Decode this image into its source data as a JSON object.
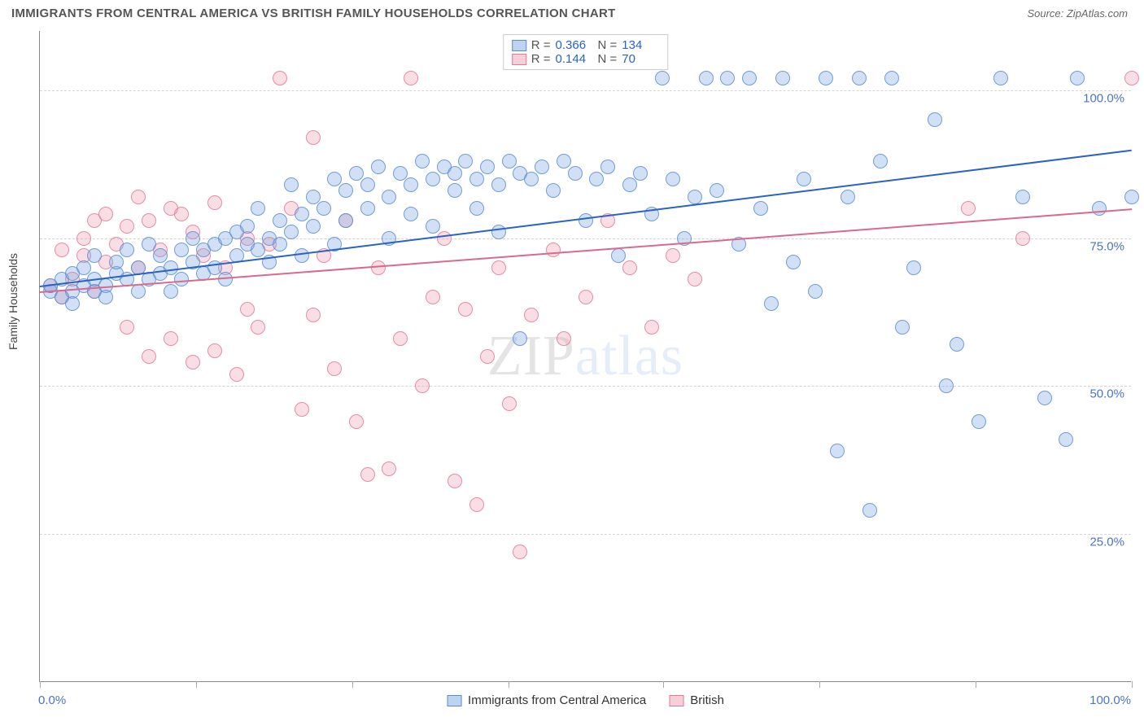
{
  "header": {
    "title": "IMMIGRANTS FROM CENTRAL AMERICA VS BRITISH FAMILY HOUSEHOLDS CORRELATION CHART",
    "source": "Source: ZipAtlas.com"
  },
  "watermark": {
    "part1": "ZIP",
    "part2": "atlas"
  },
  "chart": {
    "type": "scatter",
    "ylabel": "Family Households",
    "xlim": [
      0,
      100
    ],
    "ylim": [
      0,
      110
    ],
    "background_color": "#ffffff",
    "grid_color": "#d5d5d5",
    "axis_color": "#888888",
    "ytick_labels": [
      "25.0%",
      "50.0%",
      "75.0%",
      "100.0%"
    ],
    "ytick_values": [
      25,
      50,
      75,
      100
    ],
    "xtick_values": [
      0,
      14.3,
      28.6,
      42.9,
      57.1,
      71.4,
      85.7,
      100
    ],
    "xaxis_min_label": "0.0%",
    "xaxis_max_label": "100.0%",
    "point_radius": 9,
    "series_a": {
      "name": "Immigrants from Central America",
      "color_fill": "rgba(124,167,225,0.35)",
      "color_stroke": "#5a8cd2",
      "R": "0.366",
      "N": "134",
      "trend": {
        "x1": 0,
        "y1": 67,
        "x2": 100,
        "y2": 90,
        "color": "#2a63c4",
        "width": 2
      },
      "points": [
        [
          1,
          66
        ],
        [
          1,
          67
        ],
        [
          2,
          65
        ],
        [
          2,
          68
        ],
        [
          3,
          66
        ],
        [
          3,
          69
        ],
        [
          3,
          64
        ],
        [
          4,
          67
        ],
        [
          4,
          70
        ],
        [
          5,
          66
        ],
        [
          5,
          68
        ],
        [
          5,
          72
        ],
        [
          6,
          67
        ],
        [
          6,
          65
        ],
        [
          7,
          69
        ],
        [
          7,
          71
        ],
        [
          8,
          68
        ],
        [
          8,
          73
        ],
        [
          9,
          66
        ],
        [
          9,
          70
        ],
        [
          10,
          68
        ],
        [
          10,
          74
        ],
        [
          11,
          69
        ],
        [
          11,
          72
        ],
        [
          12,
          70
        ],
        [
          12,
          66
        ],
        [
          13,
          73
        ],
        [
          13,
          68
        ],
        [
          14,
          71
        ],
        [
          14,
          75
        ],
        [
          15,
          69
        ],
        [
          15,
          73
        ],
        [
          16,
          74
        ],
        [
          16,
          70
        ],
        [
          17,
          75
        ],
        [
          17,
          68
        ],
        [
          18,
          76
        ],
        [
          18,
          72
        ],
        [
          19,
          74
        ],
        [
          19,
          77
        ],
        [
          20,
          73
        ],
        [
          20,
          80
        ],
        [
          21,
          75
        ],
        [
          21,
          71
        ],
        [
          22,
          78
        ],
        [
          22,
          74
        ],
        [
          23,
          84
        ],
        [
          23,
          76
        ],
        [
          24,
          79
        ],
        [
          24,
          72
        ],
        [
          25,
          82
        ],
        [
          25,
          77
        ],
        [
          26,
          80
        ],
        [
          27,
          85
        ],
        [
          27,
          74
        ],
        [
          28,
          83
        ],
        [
          28,
          78
        ],
        [
          29,
          86
        ],
        [
          30,
          80
        ],
        [
          30,
          84
        ],
        [
          31,
          87
        ],
        [
          32,
          82
        ],
        [
          32,
          75
        ],
        [
          33,
          86
        ],
        [
          34,
          84
        ],
        [
          34,
          79
        ],
        [
          35,
          88
        ],
        [
          36,
          85
        ],
        [
          36,
          77
        ],
        [
          37,
          87
        ],
        [
          38,
          83
        ],
        [
          38,
          86
        ],
        [
          39,
          88
        ],
        [
          40,
          85
        ],
        [
          40,
          80
        ],
        [
          41,
          87
        ],
        [
          42,
          84
        ],
        [
          42,
          76
        ],
        [
          43,
          88
        ],
        [
          44,
          86
        ],
        [
          44,
          58
        ],
        [
          45,
          85
        ],
        [
          46,
          87
        ],
        [
          47,
          83
        ],
        [
          48,
          88
        ],
        [
          49,
          86
        ],
        [
          50,
          78
        ],
        [
          51,
          85
        ],
        [
          52,
          87
        ],
        [
          53,
          72
        ],
        [
          54,
          84
        ],
        [
          55,
          86
        ],
        [
          56,
          79
        ],
        [
          57,
          102
        ],
        [
          58,
          85
        ],
        [
          59,
          75
        ],
        [
          60,
          82
        ],
        [
          61,
          102
        ],
        [
          62,
          83
        ],
        [
          63,
          102
        ],
        [
          64,
          74
        ],
        [
          65,
          102
        ],
        [
          66,
          80
        ],
        [
          67,
          64
        ],
        [
          68,
          102
        ],
        [
          69,
          71
        ],
        [
          70,
          85
        ],
        [
          71,
          66
        ],
        [
          72,
          102
        ],
        [
          73,
          39
        ],
        [
          74,
          82
        ],
        [
          75,
          102
        ],
        [
          76,
          29
        ],
        [
          77,
          88
        ],
        [
          78,
          102
        ],
        [
          79,
          60
        ],
        [
          80,
          70
        ],
        [
          82,
          95
        ],
        [
          83,
          50
        ],
        [
          84,
          57
        ],
        [
          86,
          44
        ],
        [
          88,
          102
        ],
        [
          90,
          82
        ],
        [
          92,
          48
        ],
        [
          94,
          41
        ],
        [
          95,
          102
        ],
        [
          97,
          80
        ],
        [
          100,
          82
        ]
      ]
    },
    "series_b": {
      "name": "British",
      "color_fill": "rgba(240,160,180,0.35)",
      "color_stroke": "#e1789a",
      "R": "0.144",
      "N": "70",
      "trend": {
        "x1": 0,
        "y1": 66,
        "x2": 100,
        "y2": 80,
        "color": "#d96a8f",
        "width": 2
      },
      "points": [
        [
          1,
          67
        ],
        [
          2,
          65
        ],
        [
          2,
          73
        ],
        [
          3,
          68
        ],
        [
          4,
          75
        ],
        [
          4,
          72
        ],
        [
          5,
          66
        ],
        [
          5,
          78
        ],
        [
          6,
          71
        ],
        [
          6,
          79
        ],
        [
          7,
          74
        ],
        [
          8,
          60
        ],
        [
          8,
          77
        ],
        [
          9,
          70
        ],
        [
          9,
          82
        ],
        [
          10,
          55
        ],
        [
          10,
          78
        ],
        [
          11,
          73
        ],
        [
          12,
          80
        ],
        [
          12,
          58
        ],
        [
          13,
          79
        ],
        [
          14,
          54
        ],
        [
          14,
          76
        ],
        [
          15,
          72
        ],
        [
          16,
          56
        ],
        [
          16,
          81
        ],
        [
          17,
          70
        ],
        [
          18,
          52
        ],
        [
          19,
          75
        ],
        [
          19,
          63
        ],
        [
          20,
          60
        ],
        [
          21,
          74
        ],
        [
          22,
          102
        ],
        [
          23,
          80
        ],
        [
          24,
          46
        ],
        [
          25,
          62
        ],
        [
          25,
          92
        ],
        [
          26,
          72
        ],
        [
          27,
          53
        ],
        [
          28,
          78
        ],
        [
          29,
          44
        ],
        [
          30,
          35
        ],
        [
          31,
          70
        ],
        [
          32,
          36
        ],
        [
          33,
          58
        ],
        [
          34,
          102
        ],
        [
          35,
          50
        ],
        [
          36,
          65
        ],
        [
          37,
          75
        ],
        [
          38,
          34
        ],
        [
          39,
          63
        ],
        [
          40,
          30
        ],
        [
          41,
          55
        ],
        [
          42,
          70
        ],
        [
          43,
          47
        ],
        [
          44,
          22
        ],
        [
          45,
          62
        ],
        [
          47,
          73
        ],
        [
          48,
          58
        ],
        [
          50,
          65
        ],
        [
          52,
          78
        ],
        [
          54,
          70
        ],
        [
          56,
          60
        ],
        [
          58,
          72
        ],
        [
          60,
          68
        ],
        [
          85,
          80
        ],
        [
          90,
          75
        ],
        [
          100,
          102
        ]
      ]
    },
    "legend_top": {
      "r_label": "R =",
      "n_label": "N ="
    },
    "legend_bottom": {
      "series_a_label": "Immigrants from Central America",
      "series_b_label": "British"
    }
  }
}
